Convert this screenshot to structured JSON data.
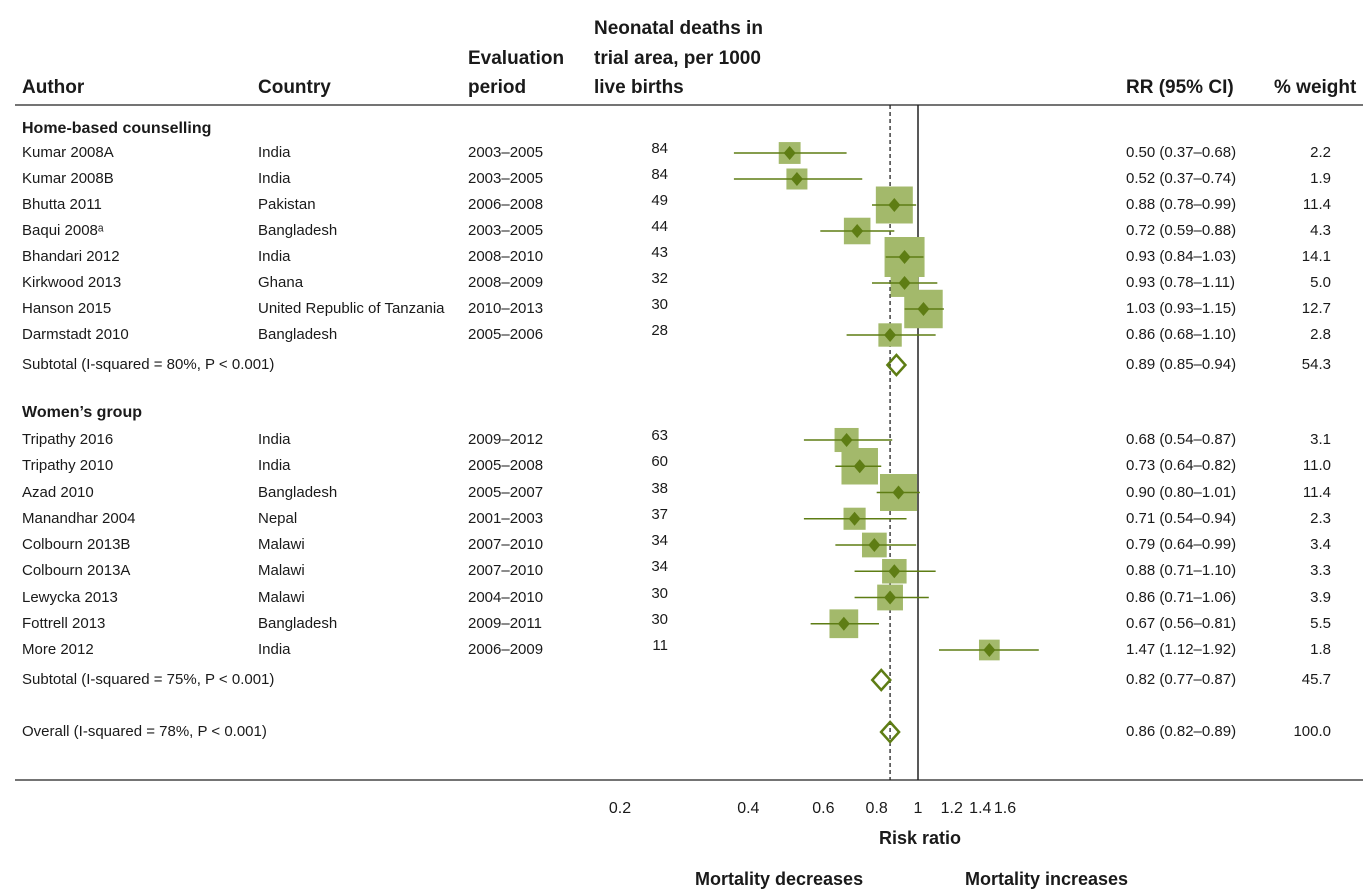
{
  "headers": {
    "author": "Author",
    "country": "Country",
    "period_line1": "Evaluation",
    "period_line2": "period",
    "deaths_line1": "Neonatal deaths in",
    "deaths_line2": "trial area, per 1000",
    "deaths_line3": "live births",
    "rr": "RR (95% CI)",
    "weight": "% weight"
  },
  "chart_data": {
    "type": "forest",
    "xlabel": "Risk ratio",
    "xscale": "log",
    "xticks": [
      "0.2",
      "0.4",
      "0.6",
      "0.8",
      "1",
      "1.2",
      "1.4",
      "1.6"
    ],
    "left_annotation": "Mortality decreases",
    "right_annotation": "Mortality increases",
    "null_line": 1,
    "overall_line": 0.86,
    "groups": [
      {
        "name": "Home-based counselling",
        "studies": [
          {
            "author": "Kumar 2008A",
            "country": "India",
            "period": "2003–2005",
            "deaths": "84",
            "rr": 0.5,
            "lo": 0.37,
            "hi": 0.68,
            "ci_text": "0.50 (0.37–0.68)",
            "weight": "2.2"
          },
          {
            "author": "Kumar 2008B",
            "country": "India",
            "period": "2003–2005",
            "deaths": "84",
            "rr": 0.52,
            "lo": 0.37,
            "hi": 0.74,
            "ci_text": "0.52 (0.37–0.74)",
            "weight": "1.9"
          },
          {
            "author": "Bhutta 2011",
            "country": "Pakistan",
            "period": "2006–2008",
            "deaths": "49",
            "rr": 0.88,
            "lo": 0.78,
            "hi": 0.99,
            "ci_text": "0.88 (0.78–0.99)",
            "weight": "11.4"
          },
          {
            "author": "Baqui 2008ᵃ",
            "country": "Bangladesh",
            "period": "2003–2005",
            "deaths": "44",
            "rr": 0.72,
            "lo": 0.59,
            "hi": 0.88,
            "ci_text": "0.72 (0.59–0.88)",
            "weight": "4.3"
          },
          {
            "author": "Bhandari 2012",
            "country": "India",
            "period": "2008–2010",
            "deaths": "43",
            "rr": 0.93,
            "lo": 0.84,
            "hi": 1.03,
            "ci_text": "0.93 (0.84–1.03)",
            "weight": "14.1"
          },
          {
            "author": "Kirkwood 2013",
            "country": "Ghana",
            "period": "2008–2009",
            "deaths": "32",
            "rr": 0.93,
            "lo": 0.78,
            "hi": 1.11,
            "ci_text": "0.93 (0.78–1.11)",
            "weight": "5.0"
          },
          {
            "author": "Hanson 2015",
            "country": "United Republic of Tanzania",
            "period": "2010–2013",
            "deaths": "30",
            "rr": 1.03,
            "lo": 0.93,
            "hi": 1.15,
            "ci_text": "1.03 (0.93–1.15)",
            "weight": "12.7"
          },
          {
            "author": "Darmstadt 2010",
            "country": "Bangladesh",
            "period": "2005–2006",
            "deaths": "28",
            "rr": 0.86,
            "lo": 0.68,
            "hi": 1.1,
            "ci_text": "0.86 (0.68–1.10)",
            "weight": "2.8"
          }
        ],
        "subtotal": {
          "label": "Subtotal  (I-squared = 80%, P < 0.001)",
          "rr": 0.89,
          "lo": 0.85,
          "hi": 0.94,
          "ci_text": "0.89 (0.85–0.94)",
          "weight": "54.3"
        }
      },
      {
        "name": "Women’s group",
        "studies": [
          {
            "author": "Tripathy 2016",
            "country": "India",
            "period": "2009–2012",
            "deaths": "63",
            "rr": 0.68,
            "lo": 0.54,
            "hi": 0.87,
            "ci_text": "0.68 (0.54–0.87)",
            "weight": "3.1"
          },
          {
            "author": "Tripathy 2010",
            "country": "India",
            "period": "2005–2008",
            "deaths": "60",
            "rr": 0.73,
            "lo": 0.64,
            "hi": 0.82,
            "ci_text": "0.73 (0.64–0.82)",
            "weight": "11.0"
          },
          {
            "author": "Azad 2010",
            "country": "Bangladesh",
            "period": "2005–2007",
            "deaths": "38",
            "rr": 0.9,
            "lo": 0.8,
            "hi": 1.01,
            "ci_text": "0.90 (0.80–1.01)",
            "weight": "11.4"
          },
          {
            "author": "Manandhar 2004",
            "country": "Nepal",
            "period": "2001–2003",
            "deaths": "37",
            "rr": 0.71,
            "lo": 0.54,
            "hi": 0.94,
            "ci_text": "0.71 (0.54–0.94)",
            "weight": "2.3"
          },
          {
            "author": "Colbourn 2013B",
            "country": "Malawi",
            "period": "2007–2010",
            "deaths": "34",
            "rr": 0.79,
            "lo": 0.64,
            "hi": 0.99,
            "ci_text": "0.79 (0.64–0.99)",
            "weight": "3.4"
          },
          {
            "author": "Colbourn 2013A",
            "country": "Malawi",
            "period": "2007–2010",
            "deaths": "34",
            "rr": 0.88,
            "lo": 0.71,
            "hi": 1.1,
            "ci_text": "0.88 (0.71–1.10)",
            "weight": "3.3"
          },
          {
            "author": "Lewycka 2013",
            "country": "Malawi",
            "period": "2004–2010",
            "deaths": "30",
            "rr": 0.86,
            "lo": 0.71,
            "hi": 1.06,
            "ci_text": "0.86 (0.71–1.06)",
            "weight": "3.9"
          },
          {
            "author": "Fottrell 2013",
            "country": "Bangladesh",
            "period": "2009–2011",
            "deaths": "30",
            "rr": 0.67,
            "lo": 0.56,
            "hi": 0.81,
            "ci_text": "0.67 (0.56–0.81)",
            "weight": "5.5"
          },
          {
            "author": "More 2012",
            "country": "India",
            "period": "2006–2009",
            "deaths": "11",
            "rr": 1.47,
            "lo": 1.12,
            "hi": 1.92,
            "ci_text": "1.47 (1.12–1.92)",
            "weight": "1.8"
          }
        ],
        "subtotal": {
          "label": "Subtotal  (I-squared = 75%, P < 0.001)",
          "rr": 0.82,
          "lo": 0.77,
          "hi": 0.87,
          "ci_text": "0.82 (0.77–0.87)",
          "weight": "45.7"
        }
      }
    ],
    "overall": {
      "label": "Overall  (I-squared = 78%, P < 0.001)",
      "rr": 0.86,
      "lo": 0.82,
      "hi": 0.89,
      "ci_text": "0.86 (0.82–0.89)",
      "weight": "100.0"
    },
    "colors": {
      "marker_fill": "#5e7d14",
      "box_fill": "#a3b96b",
      "ci_line": "#5e7d14",
      "diamond_stroke": "#5e7d14"
    }
  }
}
